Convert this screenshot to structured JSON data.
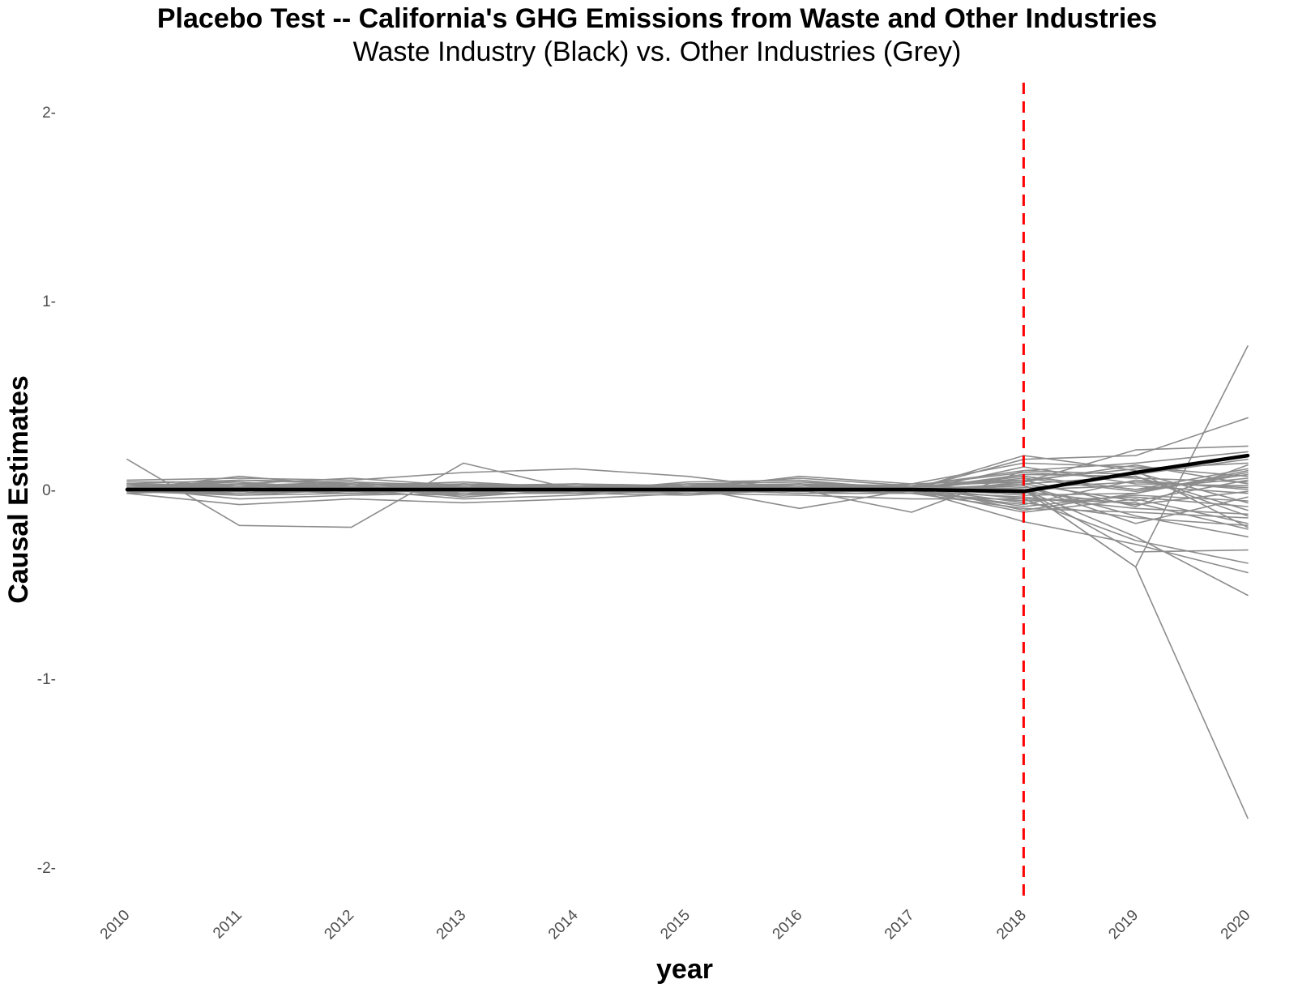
{
  "chart_data": {
    "type": "line",
    "title": "Placebo Test -- California's GHG Emissions from Waste and Other Industries",
    "subtitle": "Waste Industry (Black) vs. Other Industries (Grey)",
    "xlabel": "year",
    "ylabel": "Causal Estimates",
    "x": [
      2010,
      2011,
      2012,
      2013,
      2014,
      2015,
      2016,
      2017,
      2018,
      2019,
      2020
    ],
    "x_tick_labels": [
      "2010",
      "2011",
      "2012",
      "2013",
      "2014",
      "2015",
      "2016",
      "2017",
      "2018",
      "2019",
      "2020"
    ],
    "y_ticks": [
      2,
      1,
      0,
      -1,
      -2
    ],
    "y_tick_labels": [
      "2",
      "1",
      "0",
      "-1",
      "-2"
    ],
    "xlim": [
      2010,
      2020
    ],
    "ylim": [
      -2.2,
      2.2
    ],
    "grid": false,
    "legend": "none",
    "vline": {
      "x": 2018,
      "color": "#ff0000",
      "style": "dashed"
    },
    "colors": {
      "treated": "#000000",
      "placebo": "#8c8c8c",
      "vline": "#ff0000",
      "tick_text": "#4d4d4d"
    },
    "series": [
      {
        "group": "waste",
        "color": "#000000",
        "values": [
          0.0,
          0.0,
          0.0,
          0.0,
          0.0,
          0.0,
          0.0,
          0.0,
          -0.01,
          0.09,
          0.18
        ]
      },
      {
        "group": "other",
        "color": "#8c8c8c",
        "values": [
          0.16,
          -0.19,
          -0.2,
          0.14,
          0.0,
          0.0,
          0.0,
          0.0,
          0.0,
          -0.41,
          -1.74
        ]
      },
      {
        "group": "other",
        "color": "#8c8c8c",
        "values": [
          0.0,
          0.0,
          0.0,
          0.0,
          0.0,
          0.0,
          0.0,
          0.0,
          0.0,
          -0.41,
          0.76
        ]
      },
      {
        "group": "other",
        "color": "#8c8c8c",
        "values": [
          0.05,
          0.06,
          0.05,
          0.09,
          0.11,
          0.07,
          0.0,
          0.0,
          0.16,
          0.18,
          0.38
        ]
      },
      {
        "group": "other",
        "color": "#8c8c8c",
        "values": [
          0.0,
          0.0,
          0.0,
          0.0,
          0.0,
          0.0,
          0.0,
          0.0,
          0.0,
          -0.25,
          -0.56
        ]
      },
      {
        "group": "other",
        "color": "#8c8c8c",
        "values": [
          0.0,
          0.0,
          0.0,
          0.0,
          0.0,
          0.0,
          0.0,
          0.0,
          -0.17,
          -0.29,
          -0.44
        ]
      },
      {
        "group": "other",
        "color": "#8c8c8c",
        "values": [
          -0.02,
          -0.08,
          -0.05,
          -0.07,
          -0.05,
          -0.02,
          -0.03,
          -0.05,
          -0.05,
          -0.27,
          -0.39
        ]
      },
      {
        "group": "other",
        "color": "#8c8c8c",
        "values": [
          0.02,
          0.03,
          0.01,
          0.02,
          0.01,
          0.02,
          0.02,
          0.02,
          0.0,
          -0.33,
          -0.32
        ]
      },
      {
        "group": "other",
        "color": "#8c8c8c",
        "values": [
          0.03,
          0.05,
          0.04,
          0.02,
          0.03,
          0.02,
          0.06,
          0.02,
          0.04,
          0.21,
          0.23
        ]
      },
      {
        "group": "other",
        "color": "#8c8c8c",
        "values": [
          0.01,
          0.0,
          0.01,
          0.01,
          0.0,
          0.01,
          0.02,
          -0.01,
          0.02,
          -0.14,
          -0.25
        ]
      },
      {
        "group": "other",
        "color": "#8c8c8c",
        "values": [
          0.02,
          0.02,
          0.03,
          0.01,
          0.0,
          0.01,
          -0.1,
          0.0,
          0.18,
          0.1,
          -0.2
        ]
      },
      {
        "group": "other",
        "color": "#8c8c8c",
        "values": [
          -0.01,
          -0.03,
          -0.02,
          -0.03,
          -0.01,
          -0.01,
          0.0,
          -0.12,
          0.1,
          0.14,
          0.2
        ]
      },
      {
        "group": "other",
        "color": "#8c8c8c",
        "values": [
          0.0,
          0.07,
          0.02,
          -0.03,
          0.02,
          0.0,
          0.07,
          0.03,
          0.14,
          0.12,
          0.07
        ]
      },
      {
        "group": "other",
        "color": "#8c8c8c",
        "values": [
          0.02,
          0.03,
          0.06,
          0.02,
          -0.01,
          0.04,
          0.05,
          0.0,
          -0.12,
          -0.05,
          -0.18
        ]
      },
      {
        "group": "other",
        "color": "#8c8c8c",
        "values": [
          0.04,
          0.04,
          0.0,
          0.03,
          0.01,
          0.03,
          0.04,
          0.01,
          0.07,
          0.0,
          0.11
        ]
      },
      {
        "group": "other",
        "color": "#8c8c8c",
        "values": [
          -0.02,
          0.05,
          0.03,
          0.0,
          0.03,
          0.01,
          0.0,
          0.03,
          0.05,
          -0.09,
          0.13
        ]
      },
      {
        "group": "other",
        "color": "#8c8c8c",
        "values": [
          0.01,
          -0.05,
          -0.03,
          -0.02,
          -0.02,
          -0.03,
          0.0,
          -0.01,
          -0.08,
          0.05,
          0.0
        ]
      },
      {
        "group": "other",
        "color": "#8c8c8c",
        "values": [
          0.0,
          0.01,
          0.03,
          0.02,
          0.0,
          -0.01,
          0.01,
          0.0,
          0.02,
          -0.18,
          -0.04
        ]
      },
      {
        "group": "other",
        "color": "#8c8c8c",
        "values": [
          0.03,
          -0.01,
          0.02,
          0.04,
          0.01,
          0.02,
          0.0,
          0.01,
          -0.03,
          -0.02,
          0.09
        ]
      },
      {
        "group": "other",
        "color": "#8c8c8c",
        "values": [
          0.0,
          0.02,
          -0.01,
          -0.01,
          0.02,
          0.0,
          0.03,
          0.0,
          0.08,
          0.07,
          -0.11
        ]
      },
      {
        "group": "other",
        "color": "#8c8c8c",
        "values": [
          -0.01,
          -0.02,
          0.0,
          -0.05,
          -0.03,
          0.0,
          -0.02,
          -0.02,
          -0.1,
          -0.12,
          -0.15
        ]
      },
      {
        "group": "other",
        "color": "#8c8c8c",
        "values": [
          0.02,
          0.0,
          0.01,
          0.0,
          0.02,
          0.01,
          0.01,
          -0.01,
          0.12,
          0.03,
          0.02
        ]
      },
      {
        "group": "other",
        "color": "#8c8c8c",
        "values": [
          0.0,
          0.03,
          0.0,
          0.01,
          -0.01,
          0.03,
          0.02,
          0.01,
          -0.02,
          0.09,
          -0.07
        ]
      },
      {
        "group": "other",
        "color": "#8c8c8c",
        "values": [
          0.01,
          -0.01,
          0.02,
          0.03,
          0.01,
          0.0,
          -0.01,
          0.0,
          0.03,
          -0.06,
          0.05
        ]
      },
      {
        "group": "other",
        "color": "#8c8c8c",
        "values": [
          -0.01,
          0.01,
          -0.02,
          0.0,
          0.0,
          0.02,
          0.03,
          -0.02,
          -0.06,
          -0.04,
          -0.09
        ]
      },
      {
        "group": "other",
        "color": "#8c8c8c",
        "values": [
          0.03,
          0.02,
          0.04,
          -0.02,
          0.02,
          -0.02,
          0.0,
          0.01,
          0.05,
          0.11,
          0.14
        ]
      },
      {
        "group": "other",
        "color": "#8c8c8c",
        "values": [
          0.0,
          -0.02,
          0.01,
          0.0,
          -0.02,
          0.01,
          0.02,
          0.0,
          0.0,
          0.02,
          -0.02
        ]
      },
      {
        "group": "other",
        "color": "#8c8c8c",
        "values": [
          0.02,
          0.04,
          -0.01,
          0.02,
          0.03,
          0.0,
          -0.01,
          0.02,
          0.09,
          0.06,
          0.04
        ]
      },
      {
        "group": "other",
        "color": "#8c8c8c",
        "values": [
          -0.02,
          0.0,
          0.02,
          -0.04,
          0.0,
          -0.01,
          0.01,
          -0.01,
          -0.04,
          -0.1,
          -0.13
        ]
      },
      {
        "group": "other",
        "color": "#8c8c8c",
        "values": [
          0.01,
          0.02,
          0.0,
          0.01,
          0.01,
          0.02,
          0.03,
          0.0,
          0.06,
          -0.01,
          0.08
        ]
      },
      {
        "group": "other",
        "color": "#8c8c8c",
        "values": [
          0.0,
          -0.01,
          0.01,
          0.0,
          -0.01,
          0.0,
          0.0,
          0.01,
          -0.07,
          -0.15,
          -0.19
        ]
      },
      {
        "group": "other",
        "color": "#8c8c8c",
        "values": [
          0.02,
          0.01,
          -0.01,
          0.03,
          0.02,
          0.01,
          0.02,
          -0.01,
          0.01,
          0.04,
          0.01
        ]
      },
      {
        "group": "other",
        "color": "#8c8c8c",
        "values": [
          -0.01,
          0.03,
          0.02,
          -0.01,
          0.0,
          0.02,
          -0.01,
          0.02,
          0.1,
          0.08,
          0.16
        ]
      },
      {
        "group": "other",
        "color": "#8c8c8c",
        "values": [
          0.01,
          -0.03,
          0.0,
          0.02,
          -0.01,
          -0.02,
          0.01,
          0.0,
          -0.09,
          -0.03,
          -0.06
        ]
      },
      {
        "group": "other",
        "color": "#8c8c8c",
        "values": [
          0.0,
          0.01,
          0.03,
          0.0,
          0.02,
          0.0,
          0.0,
          -0.02,
          0.04,
          0.13,
          0.03
        ]
      },
      {
        "group": "other",
        "color": "#8c8c8c",
        "values": [
          0.03,
          0.0,
          -0.02,
          0.01,
          0.0,
          0.01,
          0.02,
          0.01,
          -0.01,
          -0.08,
          -0.01
        ]
      },
      {
        "group": "other",
        "color": "#8c8c8c",
        "values": [
          -0.02,
          0.02,
          0.01,
          -0.02,
          0.01,
          0.0,
          -0.02,
          0.0,
          0.07,
          0.0,
          0.06
        ]
      },
      {
        "group": "other",
        "color": "#8c8c8c",
        "values": [
          0.01,
          0.0,
          -0.01,
          0.02,
          -0.02,
          0.02,
          0.01,
          0.01,
          -0.05,
          -0.07,
          -0.21
        ]
      },
      {
        "group": "other",
        "color": "#8c8c8c",
        "values": [
          0.02,
          -0.02,
          0.02,
          -0.01,
          0.01,
          -0.01,
          0.0,
          -0.01,
          0.03,
          0.07,
          -0.14
        ]
      },
      {
        "group": "other",
        "color": "#8c8c8c",
        "values": [
          0.0,
          0.02,
          0.0,
          0.01,
          0.0,
          0.01,
          0.03,
          0.02,
          -0.11,
          -0.02,
          0.1
        ]
      }
    ]
  }
}
